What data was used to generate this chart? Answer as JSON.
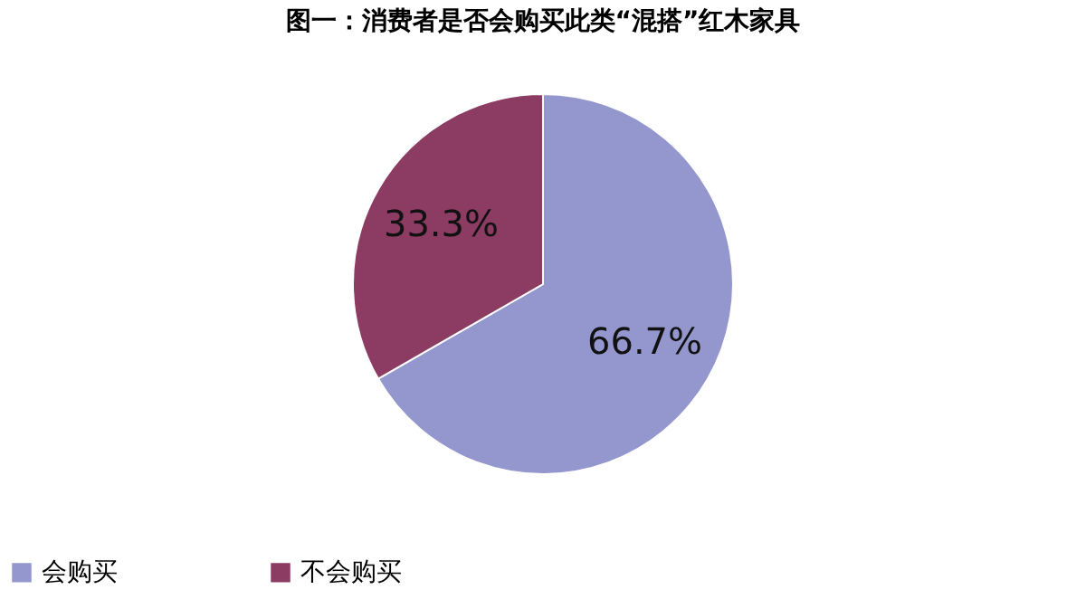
{
  "chart_data": {
    "type": "pie",
    "title": "图一：消费者是否会购买此类“混搭”红木家具",
    "categories": [
      "会购买",
      "不会购买"
    ],
    "values": [
      66.7,
      33.3
    ],
    "colors": [
      "#9497cd",
      "#8c3b63"
    ],
    "value_labels": [
      "66.7%",
      "33.3%"
    ],
    "legend": "bottom"
  }
}
